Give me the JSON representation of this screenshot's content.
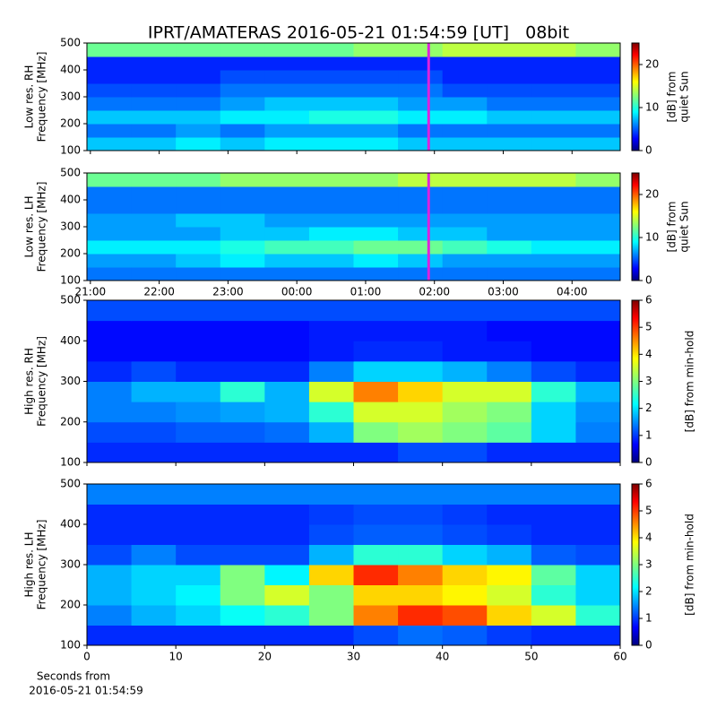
{
  "chart_data": [
    {
      "type": "heatmap",
      "title": "IPRT/AMATERAS 2016-05-21 01:54:59 [UT]   08bit",
      "ylabel": [
        "Low res. RH",
        "Frequency [MHz]"
      ],
      "colorbar_label": [
        "[dB] from",
        "quiet Sun"
      ],
      "xlim": [
        -3.05,
        4.7
      ],
      "xticks": [
        -3,
        -2,
        -1,
        0,
        1,
        2,
        3,
        4
      ],
      "xticklabels": false,
      "ylim": [
        100,
        500
      ],
      "yticks": [
        100,
        200,
        300,
        400,
        500
      ],
      "clim": [
        0,
        25
      ],
      "cticks": [
        0,
        10,
        20
      ],
      "cursor": 1.916,
      "cursor_color": "#dd22dd",
      "z": [
        [
          8,
          8,
          9,
          8,
          9,
          9,
          9,
          8,
          8,
          8,
          8,
          8
        ],
        [
          6,
          6,
          7,
          6,
          7,
          7,
          7,
          6,
          6,
          6,
          6,
          6
        ],
        [
          8,
          8,
          8,
          9,
          9,
          10,
          10,
          9,
          9,
          8,
          8,
          8
        ],
        [
          6,
          6,
          6,
          7,
          8,
          8,
          8,
          7,
          7,
          6,
          6,
          6
        ],
        [
          5,
          5,
          5,
          6,
          6,
          6,
          6,
          6,
          5,
          5,
          5,
          5
        ],
        [
          4,
          4,
          4,
          5,
          5,
          5,
          5,
          5,
          4,
          4,
          4,
          4
        ],
        [
          4,
          4,
          4,
          4,
          4,
          4,
          4,
          4,
          4,
          4,
          4,
          4
        ],
        [
          12,
          12,
          12,
          12,
          12,
          12,
          13,
          13,
          14,
          14,
          14,
          13
        ]
      ]
    },
    {
      "type": "heatmap",
      "ylabel": [
        "Low res. LH",
        "Frequency [MHz]"
      ],
      "colorbar_label": [
        "[dB] from",
        "quiet Sun"
      ],
      "xlim": [
        -3.05,
        4.7
      ],
      "xticks": [
        {
          "value": -3,
          "label": "21:00"
        },
        {
          "value": -2,
          "label": "22:00"
        },
        {
          "value": -1,
          "label": "23:00"
        },
        {
          "value": 0,
          "label": "00:00"
        },
        {
          "value": 1,
          "label": "01:00"
        },
        {
          "value": 2,
          "label": "02:00"
        },
        {
          "value": 3,
          "label": "03:00"
        },
        {
          "value": 4,
          "label": "04:00"
        }
      ],
      "xticklabels": true,
      "ylim": [
        100,
        500
      ],
      "yticks": [
        100,
        200,
        300,
        400,
        500
      ],
      "clim": [
        0,
        25
      ],
      "cticks": [
        0,
        10,
        20
      ],
      "cursor": 1.916,
      "cursor_color": "#dd22dd",
      "z": [
        [
          6,
          6,
          6,
          6,
          6,
          6,
          6,
          6,
          6,
          6,
          6,
          6
        ],
        [
          7,
          7,
          8,
          9,
          8,
          8,
          9,
          8,
          7,
          7,
          7,
          7
        ],
        [
          9,
          9,
          9,
          10,
          11,
          11,
          12,
          12,
          11,
          10,
          9,
          9
        ],
        [
          7,
          7,
          7,
          8,
          8,
          9,
          9,
          8,
          8,
          7,
          7,
          7
        ],
        [
          7,
          7,
          8,
          8,
          7,
          7,
          7,
          7,
          7,
          7,
          7,
          7
        ],
        [
          6,
          6,
          6,
          6,
          6,
          6,
          6,
          6,
          6,
          6,
          6,
          6
        ],
        [
          6,
          6,
          6,
          6,
          6,
          6,
          6,
          6,
          6,
          6,
          6,
          6
        ],
        [
          12,
          12,
          12,
          13,
          13,
          13,
          13,
          14,
          14,
          14,
          14,
          13
        ]
      ]
    },
    {
      "type": "heatmap",
      "ylabel": [
        "High res. RH",
        "Frequency [MHz]"
      ],
      "colorbar_label": [
        "[dB] from min-hold"
      ],
      "xlim": [
        0,
        60
      ],
      "xticks": [
        0,
        10,
        20,
        30,
        40,
        50,
        60
      ],
      "xticklabels": false,
      "ylim": [
        100,
        500
      ],
      "yticks": [
        100,
        200,
        300,
        400,
        500
      ],
      "clim": [
        0,
        6
      ],
      "cticks": [
        0,
        1,
        2,
        3,
        4,
        5,
        6
      ],
      "z": [
        [
          1,
          1,
          1,
          1,
          1,
          1,
          1,
          1.2,
          1.2,
          1,
          1,
          1
        ],
        [
          1.2,
          1.2,
          1.3,
          1.3,
          1.4,
          1.8,
          3,
          3.2,
          3,
          2.8,
          2,
          1.5
        ],
        [
          1.5,
          1.5,
          1.6,
          1.7,
          1.8,
          2.5,
          3.5,
          3.5,
          3.2,
          3,
          2,
          1.6
        ],
        [
          1.5,
          1.8,
          1.8,
          2.5,
          1.8,
          3.5,
          4.5,
          4,
          3.5,
          3.5,
          2.5,
          1.8
        ],
        [
          1,
          1.2,
          1,
          1,
          1,
          1.5,
          2,
          2,
          1.8,
          1.5,
          1.2,
          1
        ],
        [
          0.8,
          0.8,
          0.8,
          0.8,
          0.8,
          0.9,
          1,
          1,
          0.9,
          0.9,
          0.8,
          0.8
        ],
        [
          0.8,
          0.8,
          0.8,
          0.8,
          0.8,
          0.9,
          0.9,
          0.9,
          0.9,
          0.8,
          0.8,
          0.8
        ],
        [
          1.2,
          1.2,
          1.2,
          1.2,
          1.2,
          1.2,
          1.2,
          1.2,
          1.2,
          1.2,
          1.2,
          1.2
        ]
      ]
    },
    {
      "type": "heatmap",
      "ylabel": [
        "High res. LH",
        "Frequency [MHz]"
      ],
      "colorbar_label": [
        "[dB] from min-hold"
      ],
      "xlim": [
        0,
        60
      ],
      "xticks": [
        0,
        10,
        20,
        30,
        40,
        50,
        60
      ],
      "xticklabels": true,
      "xlabel": [
        "Seconds from",
        "2016-05-21 01:54:59"
      ],
      "ylim": [
        100,
        500
      ],
      "yticks": [
        100,
        200,
        300,
        400,
        500
      ],
      "clim": [
        0,
        6
      ],
      "cticks": [
        0,
        1,
        2,
        3,
        4,
        5,
        6
      ],
      "z": [
        [
          1,
          1,
          1,
          1,
          1,
          1,
          1.2,
          1.4,
          1.3,
          1.1,
          1,
          1
        ],
        [
          1.5,
          1.8,
          2,
          2.3,
          2.5,
          3,
          4.5,
          5,
          4.8,
          4,
          3.5,
          2.5
        ],
        [
          1.8,
          2,
          2.2,
          3,
          3.5,
          3,
          4,
          4,
          3.8,
          3.5,
          2.5,
          2
        ],
        [
          1.8,
          2,
          2,
          3,
          2.2,
          4,
          5,
          4.5,
          4,
          3.8,
          2.8,
          2
        ],
        [
          1.2,
          1.5,
          1.2,
          1.2,
          1.2,
          1.8,
          2.5,
          2.5,
          2,
          1.8,
          1.3,
          1.2
        ],
        [
          1,
          1,
          1,
          1,
          1,
          1.2,
          1.3,
          1.3,
          1.2,
          1.1,
          1,
          1
        ],
        [
          1,
          1,
          1,
          1,
          1,
          1.1,
          1.2,
          1.2,
          1.1,
          1,
          1,
          1
        ],
        [
          1.5,
          1.5,
          1.5,
          1.5,
          1.5,
          1.5,
          1.5,
          1.5,
          1.5,
          1.5,
          1.5,
          1.5
        ]
      ]
    }
  ]
}
